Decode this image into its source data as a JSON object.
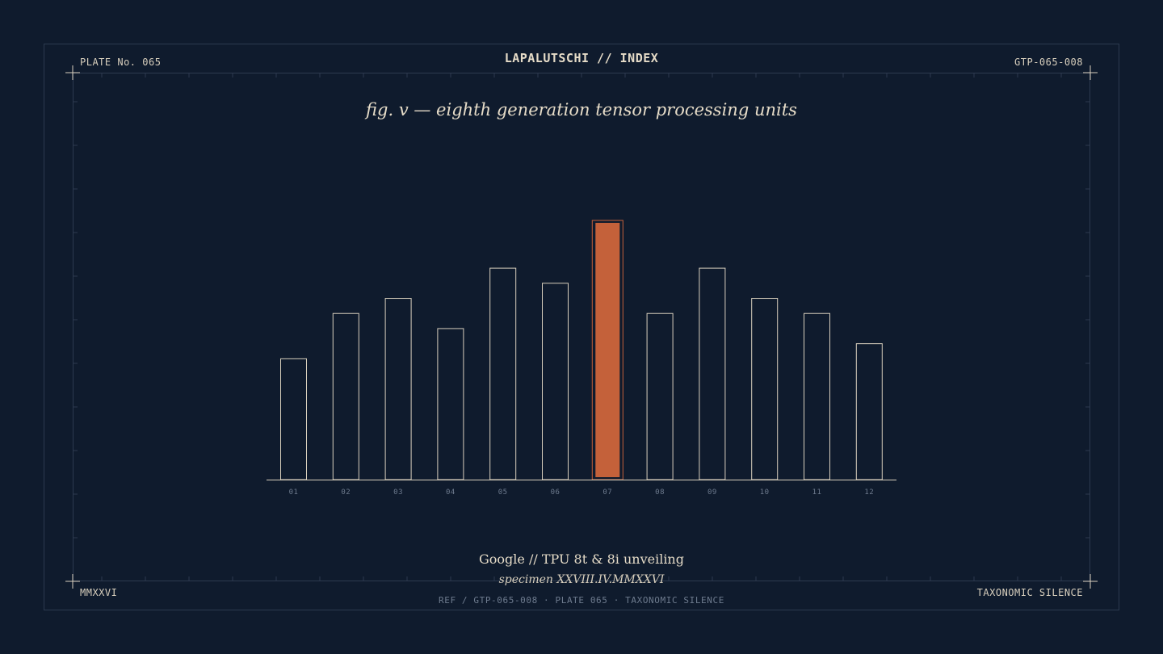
{
  "header": {
    "plate": "PLATE No. 065",
    "title": "LAPALUTSCHI // INDEX",
    "ref": "GTP-065-008"
  },
  "footer": {
    "year": "MMXXVI",
    "tag": "TAXONOMIC SILENCE",
    "ref_line": "REF / GTP-065-008  ·  PLATE 065  ·  TAXONOMIC SILENCE"
  },
  "caption": {
    "main": "Google // TPU 8t & 8i unveiling",
    "specimen": "specimen XXVIII.IV.MMXXVI"
  },
  "colors": {
    "background": "#0f1b2d",
    "bar_outline": "#d8cfbd",
    "highlight": "#c4613a",
    "frame": "#2c3a4f",
    "tick_label": "#6e7b8e"
  },
  "chart_data": {
    "type": "bar",
    "title": "fig. v — eighth generation tensor processing units",
    "xlabel": "",
    "ylabel": "",
    "categories": [
      "01",
      "02",
      "03",
      "04",
      "05",
      "06",
      "07",
      "08",
      "09",
      "10",
      "11",
      "12"
    ],
    "values": [
      8,
      11,
      12,
      10,
      14,
      13,
      17,
      11,
      14,
      12,
      11,
      9
    ],
    "highlight_index": 6,
    "ylim": [
      0,
      17
    ],
    "grid": false,
    "legend": "none"
  }
}
